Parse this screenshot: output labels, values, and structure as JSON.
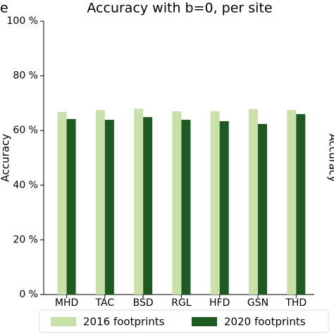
{
  "chart_data": {
    "type": "bar",
    "panel_label": "e",
    "title": "Accuracy with b=0, per site",
    "y_label": "Accuracy",
    "neighbor_label": "Accuracy",
    "categories": [
      "MHD",
      "TAC",
      "BSD",
      "RGL",
      "HFD",
      "GSN",
      "THD"
    ],
    "series": [
      {
        "name": "2016 footprints",
        "color": "#c9e0a9",
        "values": [
          66.8,
          67.5,
          68.0,
          67.0,
          67.0,
          67.8,
          67.5
        ]
      },
      {
        "name": "2020 footprints",
        "color": "#1f5a23",
        "values": [
          64.2,
          63.9,
          64.9,
          63.9,
          63.4,
          62.4,
          66.0
        ]
      }
    ],
    "ylim": [
      0,
      100
    ],
    "yticks": [
      {
        "value": 0,
        "label": "0 %"
      },
      {
        "value": 20,
        "label": "20 %"
      },
      {
        "value": 40,
        "label": "40 %"
      },
      {
        "value": 60,
        "label": "60 %"
      },
      {
        "value": 80,
        "label": "80 %"
      },
      {
        "value": 100,
        "label": "100 %"
      }
    ],
    "grid": false,
    "legend_position": "bottom"
  }
}
